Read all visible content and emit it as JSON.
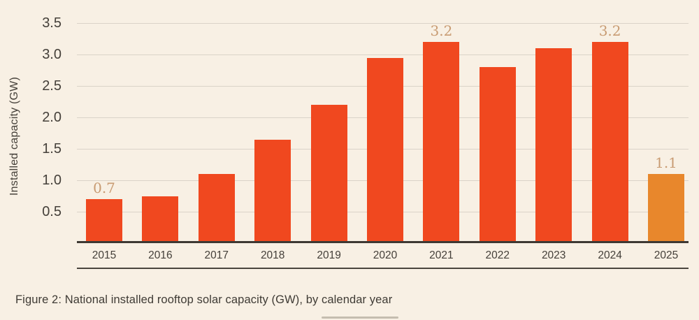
{
  "page": {
    "background": "#F8F0E4",
    "caption": "Figure 2: National installed rooftop solar capacity (GW), by calendar year"
  },
  "chart_data": {
    "type": "bar",
    "title": "",
    "xlabel": "",
    "ylabel": "Installed capacity (GW)",
    "categories": [
      "2015",
      "2016",
      "2017",
      "2018",
      "2019",
      "2020",
      "2021",
      "2022",
      "2023",
      "2024",
      "2025"
    ],
    "values": [
      0.7,
      0.75,
      1.1,
      1.65,
      2.2,
      2.95,
      3.2,
      2.8,
      3.1,
      3.2,
      1.1
    ],
    "bar_value_labels": [
      "0.7",
      "",
      "",
      "",
      "",
      "",
      "3.2",
      "",
      "",
      "3.2",
      "1.1"
    ],
    "ylim": [
      0,
      3.5
    ],
    "ytick_labels": [
      "0.5",
      "1.0",
      "1.5",
      "2.0",
      "2.5",
      "3.0",
      "3.5"
    ],
    "grid": true,
    "legend": "none",
    "colors": {
      "bar_default": "#F0481F",
      "bar_highlight": "#E8872C",
      "highlight_index": 10,
      "value_label": "#C89B72",
      "gridline": "#DAD3C8",
      "axis_line": "#3E3933",
      "tick_text": "#45403A",
      "background": "#F8F0E4"
    }
  }
}
